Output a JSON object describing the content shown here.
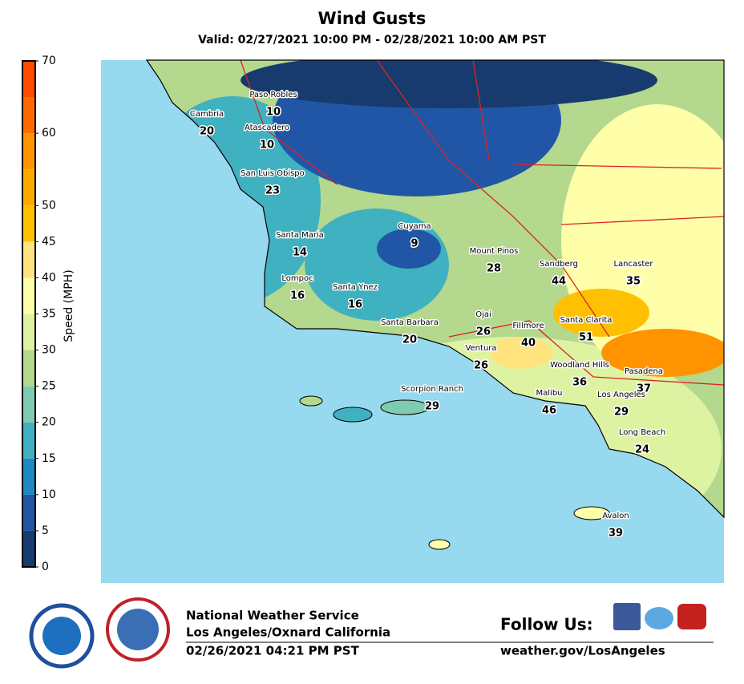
{
  "title": "Wind Gusts",
  "subtitle": "Valid: 02/27/2021 10:00 PM - 02/28/2021 10:00 AM PST",
  "colorbar": {
    "label": "Speed (MPH)",
    "ticks": [
      0,
      5,
      10,
      15,
      20,
      25,
      30,
      35,
      40,
      45,
      50,
      55,
      60,
      65,
      70
    ],
    "tick_labels_shown": [
      0,
      5,
      10,
      15,
      20,
      25,
      30,
      35,
      40,
      45,
      50,
      60,
      70
    ],
    "colors": [
      "#173b6e",
      "#2156a6",
      "#1d89c5",
      "#40b1c1",
      "#7ecbb0",
      "#b3d88e",
      "#def3a2",
      "#ffffaa",
      "#ffe37e",
      "#fec000",
      "#fdaa00",
      "#ff9300",
      "#ff6a00",
      "#ff4a00"
    ]
  },
  "cities": [
    {
      "name": "Paso Robles",
      "value": 10
    },
    {
      "name": "Cambria",
      "value": 20
    },
    {
      "name": "Atascadero",
      "value": 10
    },
    {
      "name": "San Luis Obispo",
      "value": 23
    },
    {
      "name": "Cuyama",
      "value": 9
    },
    {
      "name": "Mount Pinos",
      "value": 28
    },
    {
      "name": "Santa Maria",
      "value": 14
    },
    {
      "name": "Sandberg",
      "value": 44
    },
    {
      "name": "Lancaster",
      "value": 35
    },
    {
      "name": "Lompoc",
      "value": 16
    },
    {
      "name": "Santa Ynez",
      "value": 16
    },
    {
      "name": "Ojai",
      "value": 26
    },
    {
      "name": "Fillmore",
      "value": 40
    },
    {
      "name": "Santa Clarita",
      "value": 51
    },
    {
      "name": "Santa Barbara",
      "value": 20
    },
    {
      "name": "Ventura",
      "value": 26
    },
    {
      "name": "Woodland Hills",
      "value": 36
    },
    {
      "name": "Pasadena",
      "value": 37
    },
    {
      "name": "Scorpion Ranch",
      "value": 29
    },
    {
      "name": "Malibu",
      "value": 46
    },
    {
      "name": "Los Angeles",
      "value": 29
    },
    {
      "name": "Long Beach",
      "value": 24
    },
    {
      "name": "Avalon",
      "value": 39
    }
  ],
  "footer": {
    "org": "National Weather Service",
    "office": "Los Angeles/Oxnard California",
    "issued": "02/26/2021 04:21 PM PST",
    "follow": "Follow Us:",
    "url": "weather.gov/LosAngeles"
  }
}
